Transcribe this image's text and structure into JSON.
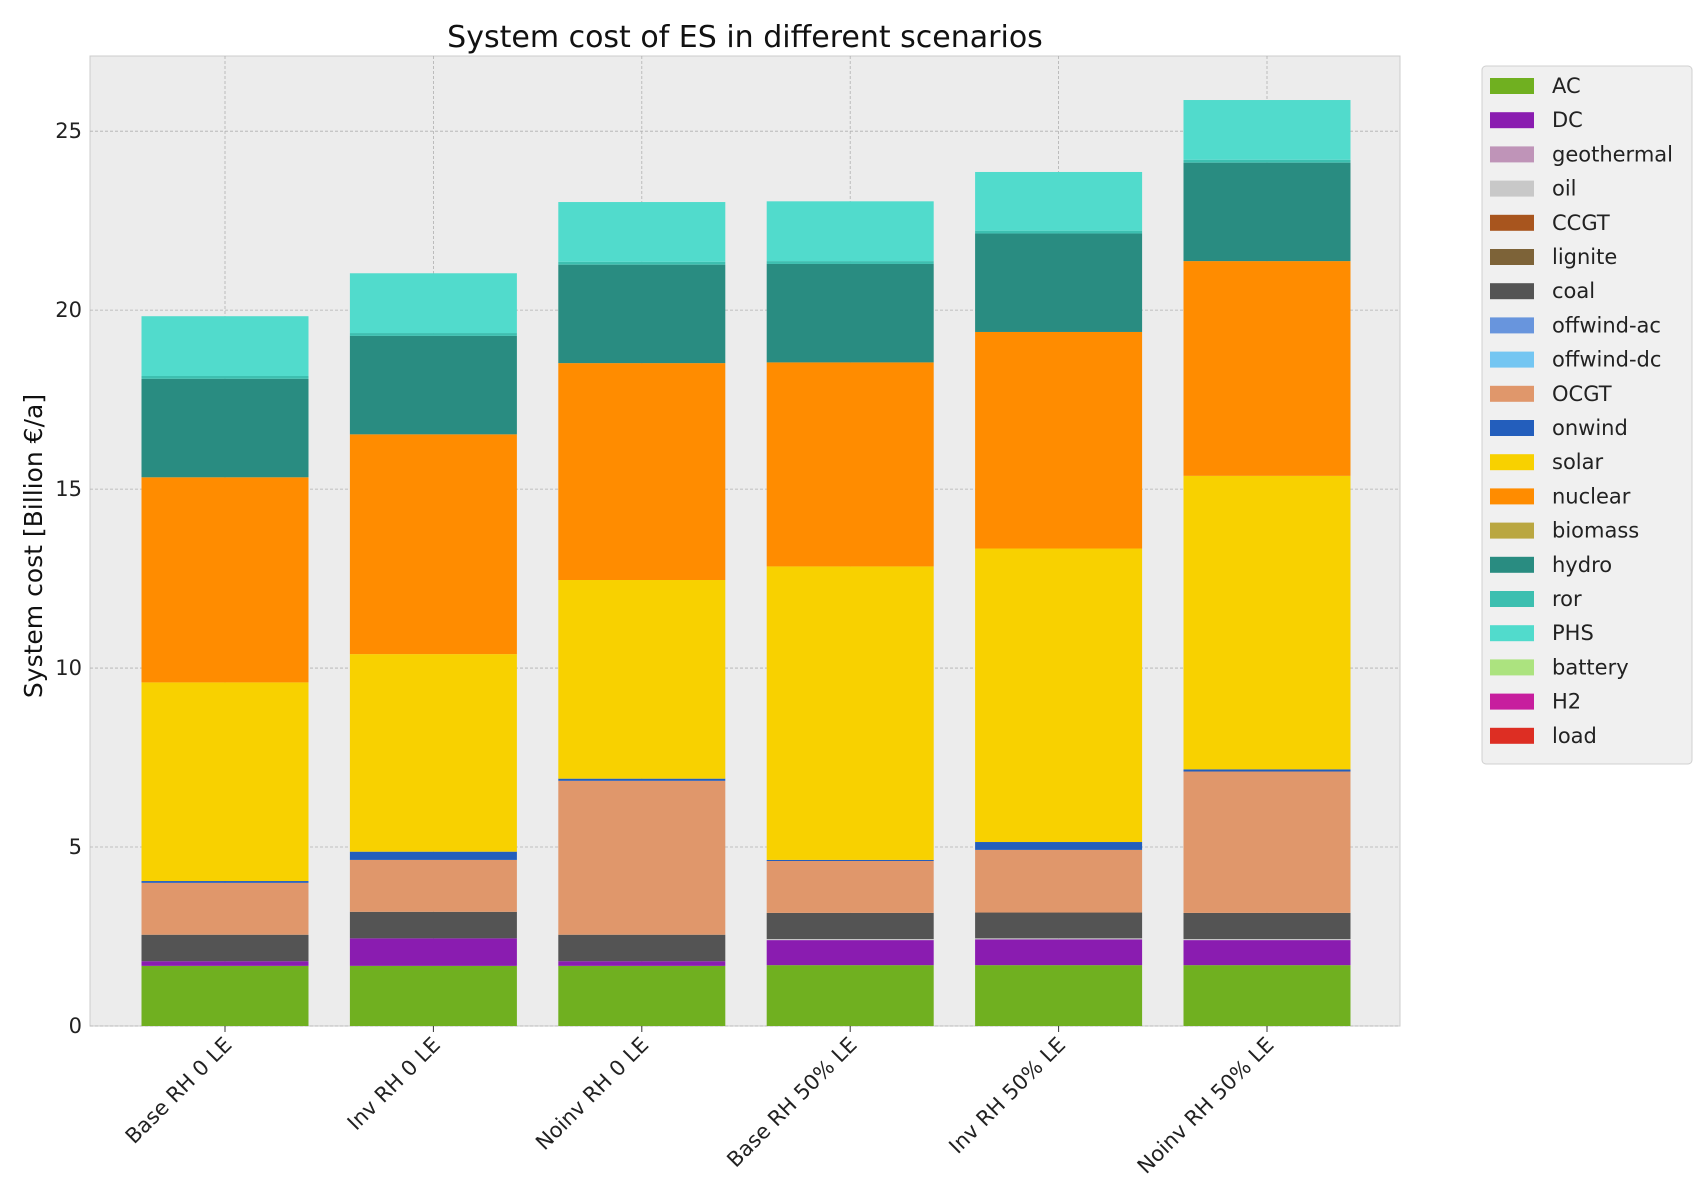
{
  "chart_data": {
    "type": "bar",
    "stacked": true,
    "title": "System cost of ES in different scenarios",
    "ylabel": "System cost [Billion €/a]",
    "xlabel": "",
    "ylim": [
      0,
      27.1
    ],
    "yticks": [
      0,
      5,
      10,
      15,
      20,
      25
    ],
    "grid": true,
    "legend_position": "outside-right",
    "categories": [
      "Base RH 0 LE",
      "Inv RH 0 LE",
      "Noinv RH 0 LE",
      "Base RH 50% LE",
      "Inv RH 50% LE",
      "Noinv RH 50% LE"
    ],
    "series": [
      {
        "name": "AC",
        "color": "#70b020",
        "values": [
          1.68,
          1.68,
          1.68,
          1.7,
          1.7,
          1.7
        ]
      },
      {
        "name": "DC",
        "color": "#8a1cb0",
        "values": [
          0.13,
          0.77,
          0.13,
          0.7,
          0.72,
          0.7
        ]
      },
      {
        "name": "geothermal",
        "color": "#bf94b8",
        "values": [
          0,
          0,
          0,
          0,
          0,
          0
        ]
      },
      {
        "name": "oil",
        "color": "#c8c8c8",
        "values": [
          0,
          0,
          0,
          0.03,
          0.03,
          0.03
        ]
      },
      {
        "name": "CCGT",
        "color": "#a8551e",
        "values": [
          0,
          0,
          0,
          0,
          0,
          0
        ]
      },
      {
        "name": "lignite",
        "color": "#7d6338",
        "values": [
          0,
          0,
          0,
          0,
          0,
          0
        ]
      },
      {
        "name": "coal",
        "color": "#545454",
        "values": [
          0.74,
          0.74,
          0.74,
          0.73,
          0.72,
          0.73
        ]
      },
      {
        "name": "offwind-ac",
        "color": "#6895dd",
        "values": [
          0,
          0,
          0,
          0,
          0,
          0
        ]
      },
      {
        "name": "offwind-dc",
        "color": "#74c6f2",
        "values": [
          0,
          0,
          0,
          0,
          0,
          0
        ]
      },
      {
        "name": "OCGT",
        "color": "#e0976b",
        "values": [
          1.45,
          1.45,
          4.3,
          1.45,
          1.75,
          3.95
        ]
      },
      {
        "name": "onwind",
        "color": "#235ebc",
        "values": [
          0.05,
          0.23,
          0.06,
          0.03,
          0.22,
          0.06
        ]
      },
      {
        "name": "solar",
        "color": "#f8d100",
        "values": [
          5.55,
          5.52,
          5.55,
          8.2,
          8.2,
          8.2
        ]
      },
      {
        "name": "nuclear",
        "color": "#ff8c00",
        "values": [
          5.73,
          6.14,
          6.06,
          5.7,
          6.05,
          6.0
        ]
      },
      {
        "name": "biomass",
        "color": "#baa741",
        "values": [
          0,
          0,
          0,
          0,
          0,
          0
        ]
      },
      {
        "name": "hydro",
        "color": "#298c81",
        "values": [
          2.75,
          2.75,
          2.75,
          2.75,
          2.75,
          2.75
        ]
      },
      {
        "name": "ror",
        "color": "#3dbfb0",
        "values": [
          0.08,
          0.08,
          0.08,
          0.08,
          0.08,
          0.08
        ]
      },
      {
        "name": "PHS",
        "color": "#51dbcc",
        "values": [
          1.67,
          1.67,
          1.67,
          1.67,
          1.64,
          1.67
        ]
      },
      {
        "name": "battery",
        "color": "#ace37f",
        "values": [
          0,
          0,
          0,
          0,
          0,
          0
        ]
      },
      {
        "name": "H2",
        "color": "#c71e9e",
        "values": [
          0,
          0,
          0,
          0,
          0,
          0
        ]
      },
      {
        "name": "load",
        "color": "#dd2e23",
        "values": [
          0,
          0,
          0,
          0,
          0,
          0
        ]
      }
    ]
  }
}
